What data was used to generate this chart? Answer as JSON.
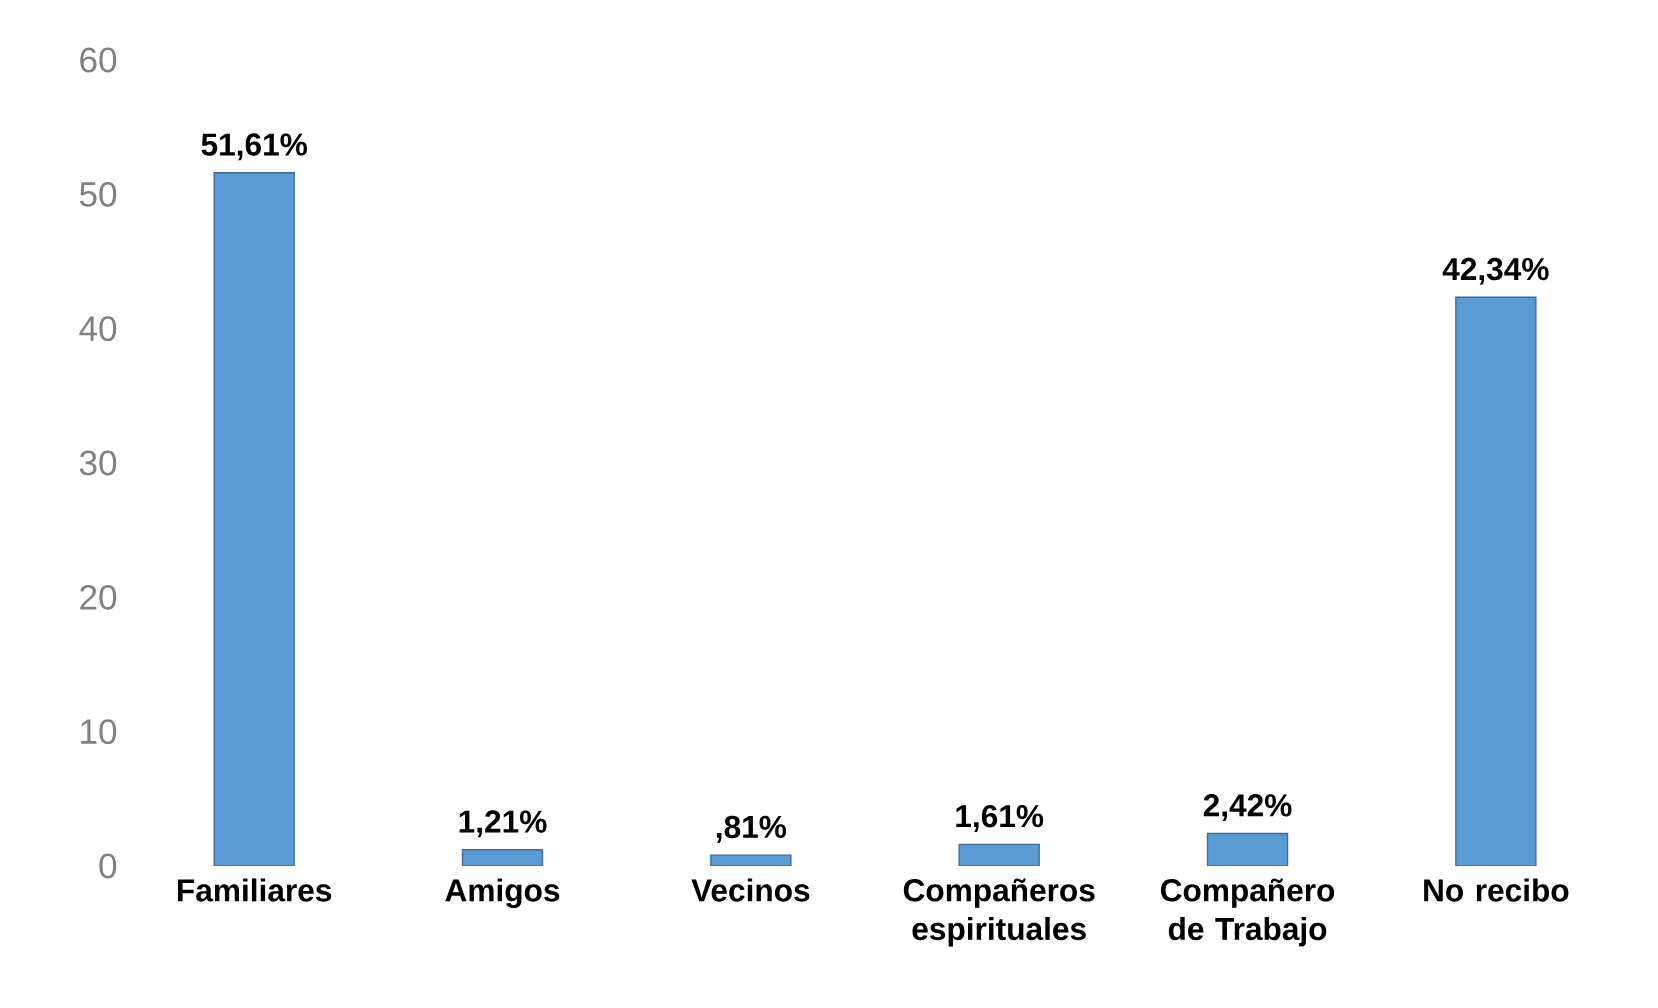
{
  "chart_data": {
    "type": "bar",
    "categories": [
      "Familiares",
      "Amigos",
      "Vecinos",
      "Compañeros espirituales",
      "Compañero de Trabajo",
      "No recibo"
    ],
    "values": [
      51.61,
      1.21,
      0.81,
      1.61,
      2.42,
      42.34
    ],
    "value_labels": [
      "51,61%",
      "1,21%",
      ",81%",
      "1,61%",
      "2,42%",
      "42,34%"
    ],
    "color": "#5b9bd5",
    "ylim": [
      0,
      60
    ],
    "yticks": [
      0,
      10,
      20,
      30,
      40,
      50,
      60
    ],
    "grid": false
  }
}
